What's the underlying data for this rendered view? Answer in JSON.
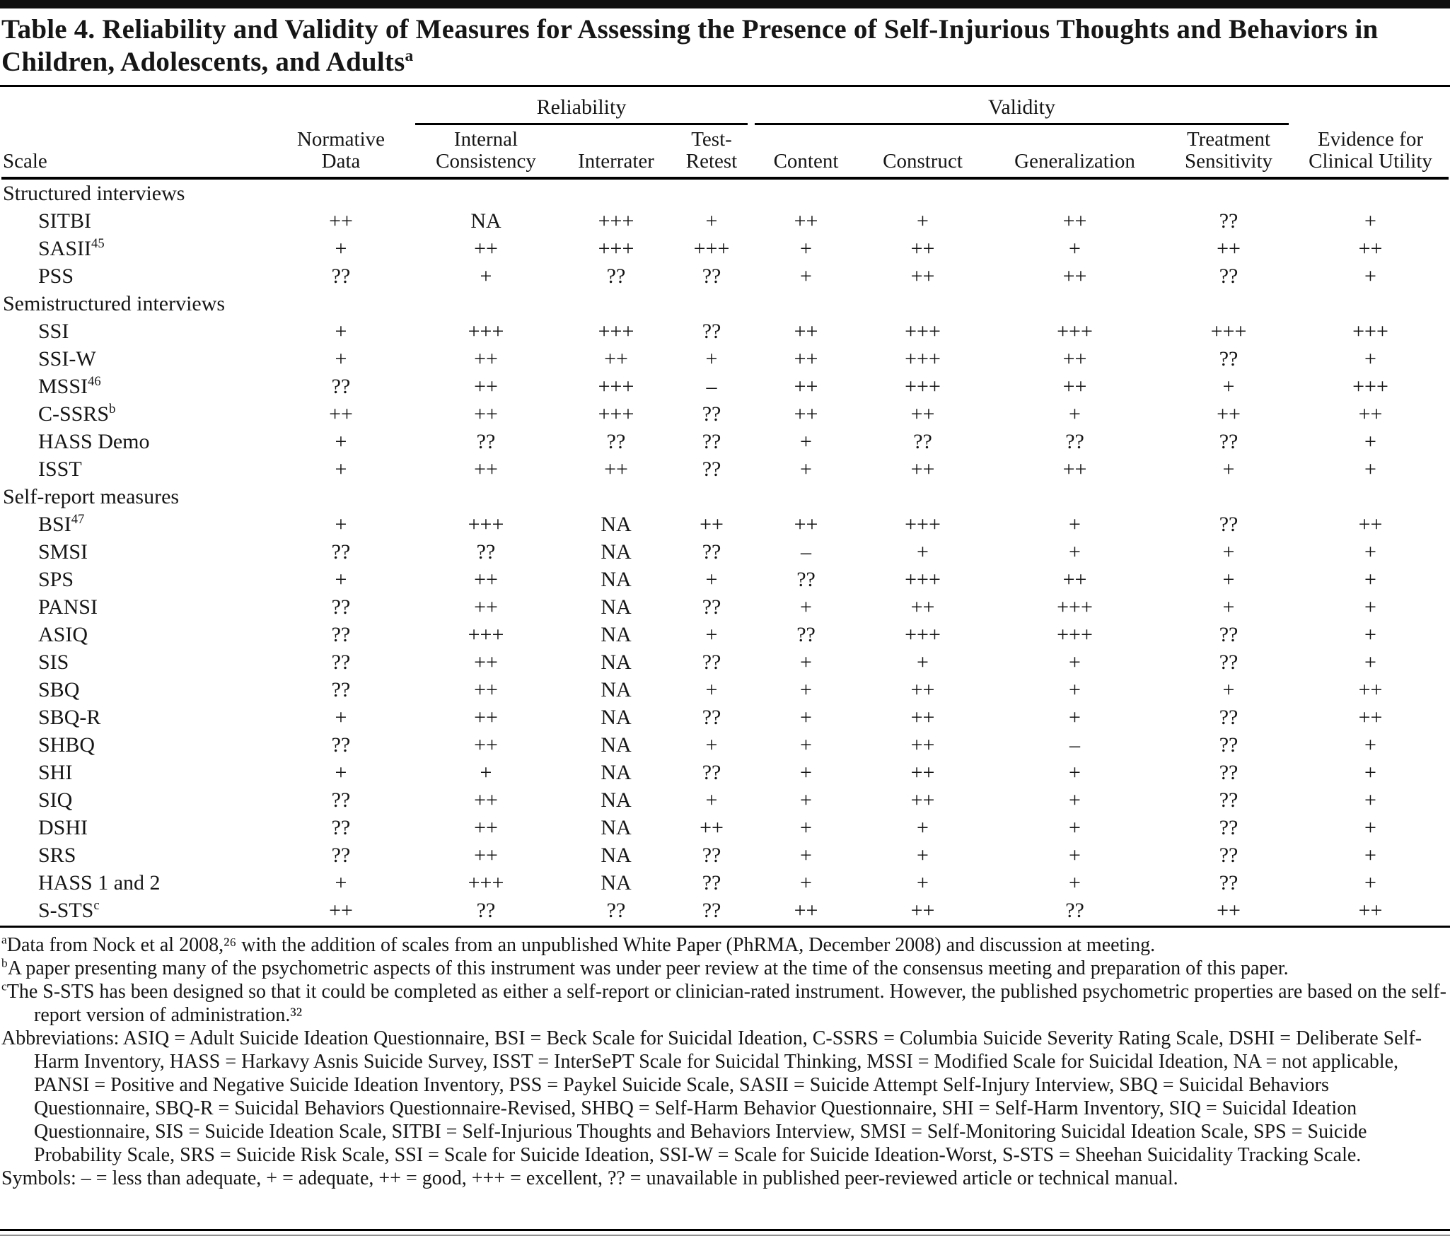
{
  "colors": {
    "ink": "#161616",
    "background": "#ffffff",
    "rule": "#000000"
  },
  "document": {
    "title": "Table 4. Reliability and Validity of Measures for Assessing the Presence of Self-Injurious Thoughts and Behaviors in Children, Adolescents, and Adults",
    "title_superscript": "a"
  },
  "table": {
    "scale_header": "Scale",
    "group_headers": {
      "reliability": "Reliability",
      "validity": "Validity"
    },
    "columns": [
      {
        "lines": [
          "Normative",
          "Data"
        ],
        "group": ""
      },
      {
        "lines": [
          "Internal",
          "Consistency"
        ],
        "group": "reliability"
      },
      {
        "lines": [
          "Interrater"
        ],
        "group": "reliability"
      },
      {
        "lines": [
          "Test-",
          "Retest"
        ],
        "group": "reliability"
      },
      {
        "lines": [
          "Content"
        ],
        "group": "validity"
      },
      {
        "lines": [
          "Construct"
        ],
        "group": "validity"
      },
      {
        "lines": [
          "Generalization"
        ],
        "group": "validity"
      },
      {
        "lines": [
          "Treatment",
          "Sensitivity"
        ],
        "group": "validity"
      },
      {
        "lines": [
          "Evidence for",
          "Clinical Utility"
        ],
        "group": ""
      }
    ],
    "sections": [
      {
        "label": "Structured interviews",
        "rows": [
          {
            "scale": "SITBI",
            "sup": "",
            "values": [
              "++",
              "NA",
              "+++",
              "+",
              "++",
              "+",
              "++",
              "??",
              "+"
            ]
          },
          {
            "scale": "SASII",
            "sup": "45",
            "values": [
              "+",
              "++",
              "+++",
              "+++",
              "+",
              "++",
              "+",
              "++",
              "++"
            ]
          },
          {
            "scale": "PSS",
            "sup": "",
            "values": [
              "??",
              "+",
              "??",
              "??",
              "+",
              "++",
              "++",
              "??",
              "+"
            ]
          }
        ]
      },
      {
        "label": "Semistructured interviews",
        "rows": [
          {
            "scale": "SSI",
            "sup": "",
            "values": [
              "+",
              "+++",
              "+++",
              "??",
              "++",
              "+++",
              "+++",
              "+++",
              "+++"
            ]
          },
          {
            "scale": "SSI-W",
            "sup": "",
            "values": [
              "+",
              "++",
              "++",
              "+",
              "++",
              "+++",
              "++",
              "??",
              "+"
            ]
          },
          {
            "scale": "MSSI",
            "sup": "46",
            "values": [
              "??",
              "++",
              "+++",
              "–",
              "++",
              "+++",
              "++",
              "+",
              "+++"
            ]
          },
          {
            "scale": "C-SSRS",
            "sup": "b",
            "values": [
              "++",
              "++",
              "+++",
              "??",
              "++",
              "++",
              "+",
              "++",
              "++"
            ]
          },
          {
            "scale": "HASS Demo",
            "sup": "",
            "values": [
              "+",
              "??",
              "??",
              "??",
              "+",
              "??",
              "??",
              "??",
              "+"
            ]
          },
          {
            "scale": "ISST",
            "sup": "",
            "values": [
              "+",
              "++",
              "++",
              "??",
              "+",
              "++",
              "++",
              "+",
              "+"
            ]
          }
        ]
      },
      {
        "label": "Self-report measures",
        "rows": [
          {
            "scale": "BSI",
            "sup": "47",
            "values": [
              "+",
              "+++",
              "NA",
              "++",
              "++",
              "+++",
              "+",
              "??",
              "++"
            ]
          },
          {
            "scale": "SMSI",
            "sup": "",
            "values": [
              "??",
              "??",
              "NA",
              "??",
              "–",
              "+",
              "+",
              "+",
              "+"
            ]
          },
          {
            "scale": "SPS",
            "sup": "",
            "values": [
              "+",
              "++",
              "NA",
              "+",
              "??",
              "+++",
              "++",
              "+",
              "+"
            ]
          },
          {
            "scale": "PANSI",
            "sup": "",
            "values": [
              "??",
              "++",
              "NA",
              "??",
              "+",
              "++",
              "+++",
              "+",
              "+"
            ]
          },
          {
            "scale": "ASIQ",
            "sup": "",
            "values": [
              "??",
              "+++",
              "NA",
              "+",
              "??",
              "+++",
              "+++",
              "??",
              "+"
            ]
          },
          {
            "scale": "SIS",
            "sup": "",
            "values": [
              "??",
              "++",
              "NA",
              "??",
              "+",
              "+",
              "+",
              "??",
              "+"
            ]
          },
          {
            "scale": "SBQ",
            "sup": "",
            "values": [
              "??",
              "++",
              "NA",
              "+",
              "+",
              "++",
              "+",
              "+",
              "++"
            ]
          },
          {
            "scale": "SBQ-R",
            "sup": "",
            "values": [
              "+",
              "++",
              "NA",
              "??",
              "+",
              "++",
              "+",
              "??",
              "++"
            ]
          },
          {
            "scale": "SHBQ",
            "sup": "",
            "values": [
              "??",
              "++",
              "NA",
              "+",
              "+",
              "++",
              "–",
              "??",
              "+"
            ]
          },
          {
            "scale": "SHI",
            "sup": "",
            "values": [
              "+",
              "+",
              "NA",
              "??",
              "+",
              "++",
              "+",
              "??",
              "+"
            ]
          },
          {
            "scale": "SIQ",
            "sup": "",
            "values": [
              "??",
              "++",
              "NA",
              "+",
              "+",
              "++",
              "+",
              "??",
              "+"
            ]
          },
          {
            "scale": "DSHI",
            "sup": "",
            "values": [
              "??",
              "++",
              "NA",
              "++",
              "+",
              "+",
              "+",
              "??",
              "+"
            ]
          },
          {
            "scale": "SRS",
            "sup": "",
            "values": [
              "??",
              "++",
              "NA",
              "??",
              "+",
              "+",
              "+",
              "??",
              "+"
            ]
          },
          {
            "scale": "HASS 1 and 2",
            "sup": "",
            "values": [
              "+",
              "+++",
              "NA",
              "??",
              "+",
              "+",
              "+",
              "??",
              "+"
            ]
          },
          {
            "scale": "S-STS",
            "sup": "c",
            "values": [
              "++",
              "??",
              "??",
              "??",
              "++",
              "++",
              "??",
              "++",
              "++"
            ]
          }
        ]
      }
    ]
  },
  "footnotes": {
    "a": {
      "marker": "a",
      "text": "Data from Nock et al 2008,²⁶ with the addition of scales from an unpublished White Paper (PhRMA, December 2008) and discussion at meeting."
    },
    "b": {
      "marker": "b",
      "text": "A paper presenting many of the psychometric aspects of this instrument was under peer review at the time of the consensus meeting and preparation of this paper."
    },
    "c": {
      "marker": "c",
      "text": "The S-STS has been designed so that it could be completed as either a self-report or clinician-rated instrument. However, the published psychometric properties are based on the self-report version of administration.³²"
    },
    "abbreviations": "Abbreviations: ASIQ = Adult Suicide Ideation Questionnaire, BSI = Beck Scale for Suicidal Ideation, C-SSRS = Columbia Suicide Severity Rating Scale, DSHI = Deliberate Self-Harm Inventory, HASS = Harkavy Asnis Suicide Survey, ISST = InterSePT Scale for Suicidal Thinking, MSSI = Modified Scale for Suicidal Ideation, NA = not applicable, PANSI = Positive and Negative Suicide Ideation Inventory, PSS = Paykel Suicide Scale, SASII = Suicide Attempt Self-Injury Interview, SBQ = Suicidal Behaviors Questionnaire, SBQ-R = Suicidal Behaviors Questionnaire-Revised, SHBQ = Self-Harm Behavior Questionnaire, SHI = Self-Harm Inventory, SIQ = Suicidal Ideation Questionnaire, SIS = Suicide Ideation Scale, SITBI = Self-Injurious Thoughts and Behaviors Interview, SMSI = Self-Monitoring Suicidal Ideation Scale, SPS = Suicide Probability Scale, SRS = Suicide Risk Scale, SSI = Scale for Suicide Ideation, SSI-W = Scale for Suicide Ideation-Worst, S-STS = Sheehan Suicidality Tracking Scale.",
    "symbols": "Symbols: – = less than adequate, + = adequate, ++ = good, +++ = excellent, ?? = unavailable in published peer-reviewed article or technical manual."
  }
}
